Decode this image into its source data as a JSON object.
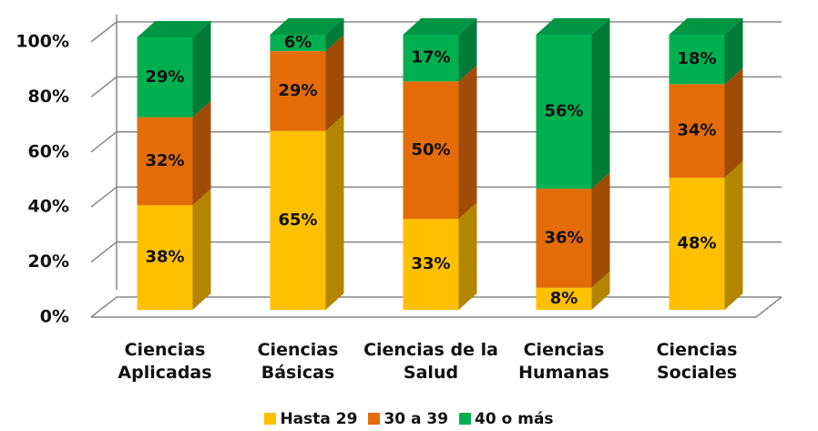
{
  "chart_data": {
    "type": "bar3d_stacked",
    "categories": [
      "Ciencias Aplicadas",
      "Ciencias Básicas",
      "Ciencias de la Salud",
      "Ciencias Humanas",
      "Ciencias Sociales"
    ],
    "series": [
      {
        "name": "Hasta 29",
        "color": "#ffc000",
        "values": [
          38,
          65,
          33,
          8,
          48
        ],
        "value_labels": [
          "38%",
          "65%",
          "33%",
          "8%",
          "48%"
        ]
      },
      {
        "name": "30 a 39",
        "color": "#e36c09",
        "values": [
          32,
          29,
          50,
          36,
          34
        ],
        "value_labels": [
          "32%",
          "29%",
          "50%",
          "36%",
          "34%"
        ]
      },
      {
        "name": "40 o más",
        "color": "#00b050",
        "values": [
          29,
          6,
          17,
          56,
          18
        ],
        "value_labels": [
          "29%",
          "6%",
          "17%",
          "56%",
          "18%"
        ]
      }
    ],
    "ylim": [
      0,
      100
    ],
    "yticks": [
      {
        "value": 0,
        "label": "0%"
      },
      {
        "value": 20,
        "label": "20%"
      },
      {
        "value": 40,
        "label": "40%"
      },
      {
        "value": 60,
        "label": "60%"
      },
      {
        "value": 80,
        "label": "80%"
      },
      {
        "value": 100,
        "label": "100%"
      }
    ],
    "grid": true,
    "legend": "bottom"
  }
}
